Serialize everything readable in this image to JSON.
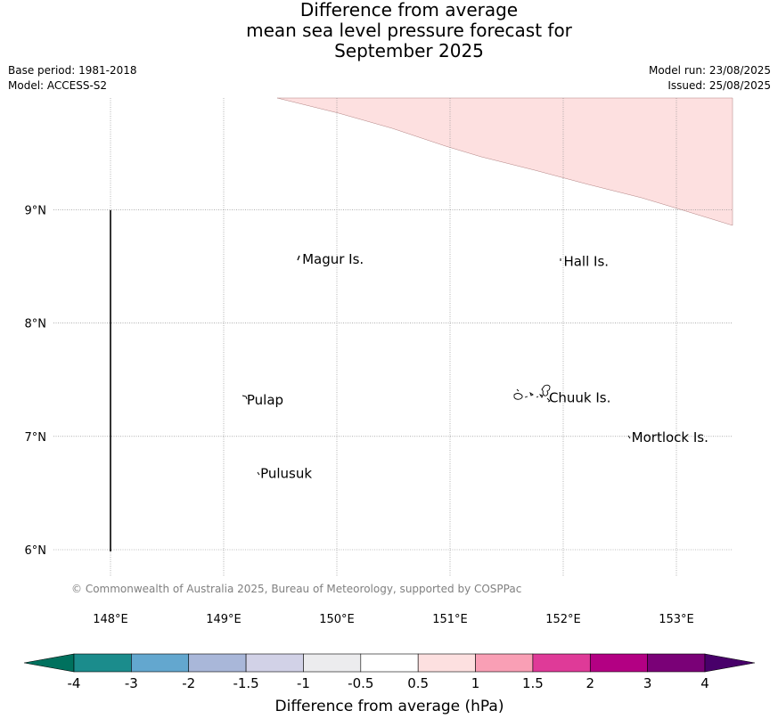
{
  "title": {
    "line1": "Difference from average",
    "line2": "mean sea level pressure forecast for",
    "line3": "September 2025"
  },
  "meta_left": {
    "base_period": "Base period: 1981-2018",
    "model": "Model: ACCESS-S2"
  },
  "meta_right": {
    "model_run": "Model run: 23/08/2025",
    "issued": "Issued: 25/08/2025"
  },
  "map": {
    "lon_range": [
      147.5,
      153.5
    ],
    "lat_range": [
      5.85,
      10.0
    ],
    "lon_ticks": [
      "148°E",
      "149°E",
      "150°E",
      "151°E",
      "152°E",
      "153°E"
    ],
    "lat_ticks": [
      "9°N",
      "8°N",
      "7°N",
      "6°N"
    ],
    "gridlines": true,
    "shaded_region": {
      "category": "0.5 to 1",
      "color": "#fde0e0"
    },
    "places": [
      {
        "name": "Magur Is.",
        "lon": 149.67,
        "lat": 8.57
      },
      {
        "name": "Hall Is.",
        "lon": 151.98,
        "lat": 8.55
      },
      {
        "name": "Pulap",
        "lon": 149.18,
        "lat": 7.33
      },
      {
        "name": "Chuuk Is.",
        "lon": 151.85,
        "lat": 7.35
      },
      {
        "name": "Mortlock Is.",
        "lon": 152.58,
        "lat": 7.0
      },
      {
        "name": "Pulusuk",
        "lon": 149.3,
        "lat": 6.68
      }
    ],
    "copyright": "© Commonwealth of Australia 2025, Bureau of Meteorology, supported by COSPPac"
  },
  "colorbar": {
    "label": "Difference from average (hPa)",
    "tick_labels": [
      "-4",
      "-3",
      "-2",
      "-1.5",
      "-1",
      "-0.5",
      "0.5",
      "1",
      "1.5",
      "2",
      "3",
      "4"
    ],
    "colors": [
      "#1b8c8c",
      "#63a7cf",
      "#a9b7d9",
      "#d2d2e7",
      "#ececee",
      "#ffffff",
      "#fde0e0",
      "#f99fb5",
      "#df3a98",
      "#b30083",
      "#7a0177"
    ],
    "under_color": "#00715e",
    "over_color": "#48006a"
  }
}
